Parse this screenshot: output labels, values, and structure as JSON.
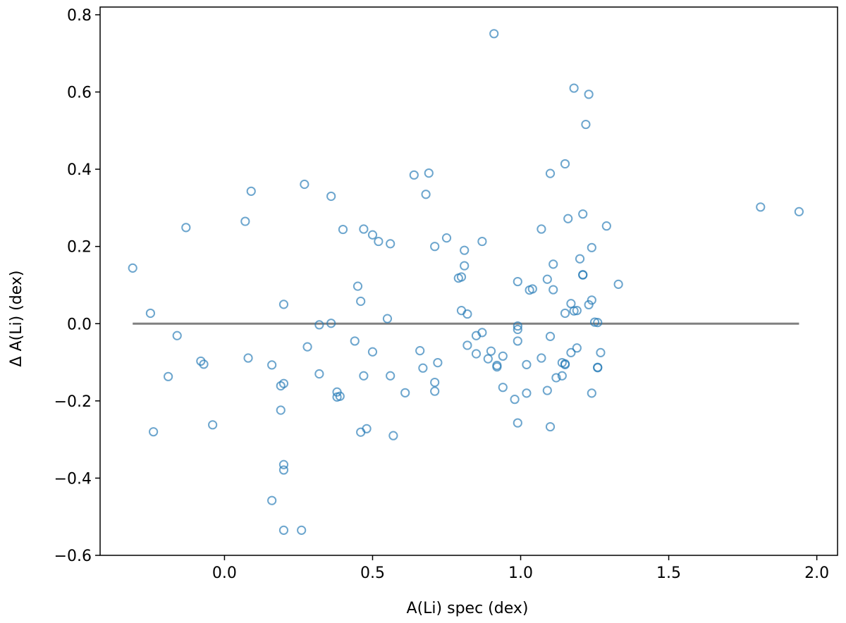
{
  "chart_data": {
    "type": "scatter",
    "xlabel": "A(Li) spec (dex)",
    "ylabel": "Δ A(Li) (dex)",
    "xlim": [
      -0.42,
      2.07
    ],
    "ylim": [
      -0.6,
      0.82
    ],
    "x_ticks": [
      0.0,
      0.5,
      1.0,
      1.5,
      2.0
    ],
    "x_tick_labels": [
      "0.0",
      "0.5",
      "1.0",
      "1.5",
      "2.0"
    ],
    "y_ticks": [
      -0.6,
      -0.4,
      -0.2,
      0.0,
      0.2,
      0.4,
      0.6,
      0.8
    ],
    "y_tick_labels": [
      "−0.6",
      "−0.4",
      "−0.2",
      "0.0",
      "0.2",
      "0.4",
      "0.6",
      "0.8"
    ],
    "grid": false,
    "marker_color": "#1f77b4",
    "reference_line": {
      "y": 0.0,
      "x_range": [
        -0.31,
        1.94
      ],
      "color": "#808080"
    },
    "points": [
      [
        -0.31,
        0.144
      ],
      [
        -0.25,
        0.027
      ],
      [
        -0.24,
        -0.28
      ],
      [
        -0.19,
        -0.137
      ],
      [
        -0.16,
        -0.031
      ],
      [
        -0.13,
        0.249
      ],
      [
        -0.08,
        -0.097
      ],
      [
        -0.07,
        -0.105
      ],
      [
        -0.04,
        -0.262
      ],
      [
        0.07,
        0.265
      ],
      [
        0.08,
        -0.089
      ],
      [
        0.09,
        0.343
      ],
      [
        0.16,
        -0.107
      ],
      [
        0.16,
        -0.458
      ],
      [
        0.19,
        -0.161
      ],
      [
        0.19,
        -0.224
      ],
      [
        0.2,
        0.05
      ],
      [
        0.2,
        -0.155
      ],
      [
        0.2,
        -0.365
      ],
      [
        0.2,
        -0.379
      ],
      [
        0.2,
        -0.535
      ],
      [
        0.26,
        -0.535
      ],
      [
        0.27,
        0.361
      ],
      [
        0.28,
        -0.06
      ],
      [
        0.32,
        -0.003
      ],
      [
        0.32,
        -0.13
      ],
      [
        0.36,
        0.33
      ],
      [
        0.36,
        0.001
      ],
      [
        0.38,
        -0.177
      ],
      [
        0.38,
        -0.19
      ],
      [
        0.39,
        -0.188
      ],
      [
        0.4,
        0.244
      ],
      [
        0.44,
        -0.045
      ],
      [
        0.45,
        0.097
      ],
      [
        0.46,
        0.058
      ],
      [
        0.46,
        -0.281
      ],
      [
        0.47,
        0.245
      ],
      [
        0.47,
        -0.135
      ],
      [
        0.48,
        -0.272
      ],
      [
        0.5,
        0.23
      ],
      [
        0.5,
        -0.073
      ],
      [
        0.52,
        0.213
      ],
      [
        0.55,
        0.013
      ],
      [
        0.56,
        -0.135
      ],
      [
        0.56,
        0.207
      ],
      [
        0.57,
        -0.29
      ],
      [
        0.61,
        -0.179
      ],
      [
        0.64,
        0.385
      ],
      [
        0.66,
        -0.07
      ],
      [
        0.67,
        -0.115
      ],
      [
        0.68,
        0.335
      ],
      [
        0.69,
        0.39
      ],
      [
        0.71,
        -0.152
      ],
      [
        0.71,
        0.2
      ],
      [
        0.71,
        -0.175
      ],
      [
        0.72,
        -0.101
      ],
      [
        0.75,
        0.222
      ],
      [
        0.79,
        0.118
      ],
      [
        0.8,
        0.121
      ],
      [
        0.8,
        0.034
      ],
      [
        0.81,
        0.15
      ],
      [
        0.81,
        0.19
      ],
      [
        0.82,
        -0.056
      ],
      [
        0.82,
        0.025
      ],
      [
        0.85,
        -0.031
      ],
      [
        0.85,
        -0.078
      ],
      [
        0.87,
        0.213
      ],
      [
        0.87,
        -0.023
      ],
      [
        0.89,
        -0.091
      ],
      [
        0.9,
        -0.071
      ],
      [
        0.91,
        0.751
      ],
      [
        0.92,
        -0.108
      ],
      [
        0.92,
        -0.112
      ],
      [
        0.94,
        -0.084
      ],
      [
        0.94,
        -0.165
      ],
      [
        0.98,
        -0.196
      ],
      [
        0.99,
        -0.006
      ],
      [
        0.99,
        -0.045
      ],
      [
        0.99,
        -0.015
      ],
      [
        0.99,
        0.109
      ],
      [
        0.99,
        -0.257
      ],
      [
        1.02,
        -0.106
      ],
      [
        1.02,
        -0.18
      ],
      [
        1.03,
        0.087
      ],
      [
        1.04,
        0.09
      ],
      [
        1.07,
        0.245
      ],
      [
        1.07,
        -0.089
      ],
      [
        1.09,
        0.115
      ],
      [
        1.09,
        -0.173
      ],
      [
        1.1,
        -0.267
      ],
      [
        1.1,
        -0.033
      ],
      [
        1.1,
        0.389
      ],
      [
        1.11,
        0.154
      ],
      [
        1.11,
        0.088
      ],
      [
        1.12,
        -0.14
      ],
      [
        1.14,
        -0.101
      ],
      [
        1.14,
        -0.135
      ],
      [
        1.15,
        -0.104
      ],
      [
        1.15,
        -0.106
      ],
      [
        1.15,
        0.027
      ],
      [
        1.15,
        0.414
      ],
      [
        1.16,
        0.272
      ],
      [
        1.17,
        -0.075
      ],
      [
        1.17,
        0.052
      ],
      [
        1.18,
        0.033
      ],
      [
        1.18,
        0.61
      ],
      [
        1.19,
        0.034
      ],
      [
        1.19,
        -0.063
      ],
      [
        1.2,
        0.168
      ],
      [
        1.21,
        0.126
      ],
      [
        1.21,
        0.127
      ],
      [
        1.21,
        0.284
      ],
      [
        1.22,
        0.516
      ],
      [
        1.23,
        0.594
      ],
      [
        1.23,
        0.049
      ],
      [
        1.24,
        0.061
      ],
      [
        1.24,
        0.197
      ],
      [
        1.24,
        -0.18
      ],
      [
        1.25,
        0.004
      ],
      [
        1.26,
        0.003
      ],
      [
        1.26,
        -0.113
      ],
      [
        1.26,
        -0.114
      ],
      [
        1.27,
        -0.075
      ],
      [
        1.29,
        0.253
      ],
      [
        1.33,
        0.102
      ],
      [
        1.81,
        0.302
      ],
      [
        1.94,
        0.29
      ]
    ]
  }
}
